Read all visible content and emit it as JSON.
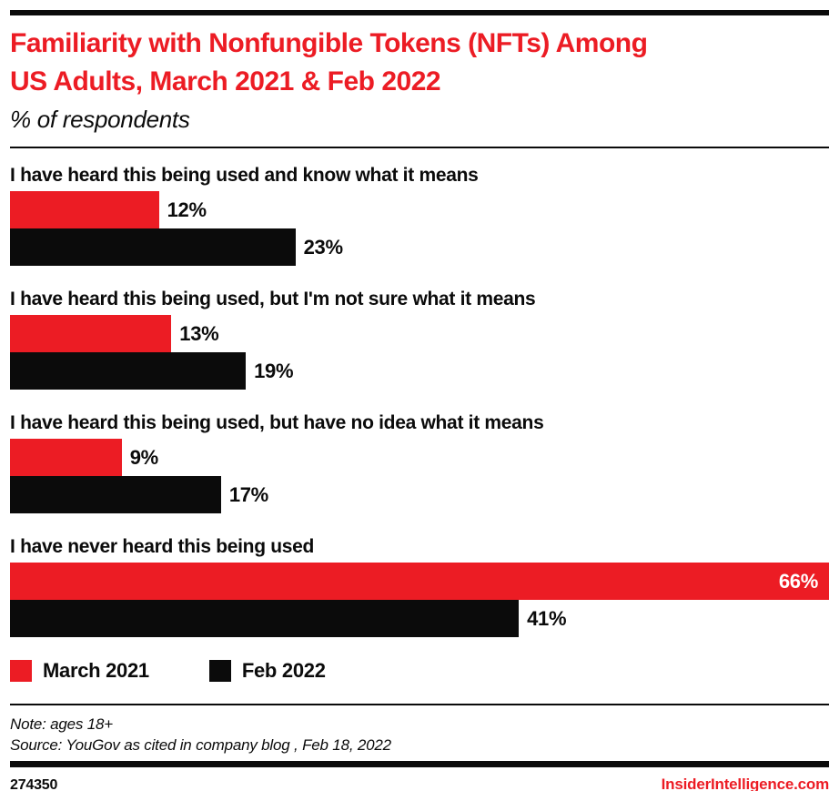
{
  "header": {
    "title": "Familiarity with Nonfungible Tokens (NFTs) Among\nUS Adults, March 2021 & Feb 2022",
    "subtitle": "% of respondents"
  },
  "chart_data": {
    "type": "bar",
    "orientation": "horizontal",
    "title": "Familiarity with Nonfungible Tokens (NFTs) Among US Adults, March 2021 & Feb 2022",
    "subtitle": "% of respondents",
    "categories": [
      "I have heard this being used and know what it means",
      "I have heard this being used, but I'm not sure what it means",
      "I have heard this being used, but have no idea what it means",
      "I have never heard this being used"
    ],
    "series": [
      {
        "name": "March 2021",
        "color": "#EC1C24",
        "values": [
          12,
          13,
          9,
          66
        ]
      },
      {
        "name": "Feb 2022",
        "color": "#0b0b0b",
        "values": [
          23,
          19,
          17,
          41
        ]
      }
    ],
    "value_suffix": "%",
    "xlim": [
      0,
      66
    ],
    "grid": false,
    "legend_position": "bottom"
  },
  "footer": {
    "note": "Note: ages 18+",
    "source": "Source: YouGov as cited in company blog , Feb 18, 2022",
    "chart_id": "274350",
    "brand": "InsiderIntelligence.com"
  },
  "colors": {
    "accent_red": "#EC1C24",
    "bar_black": "#0b0b0b"
  }
}
